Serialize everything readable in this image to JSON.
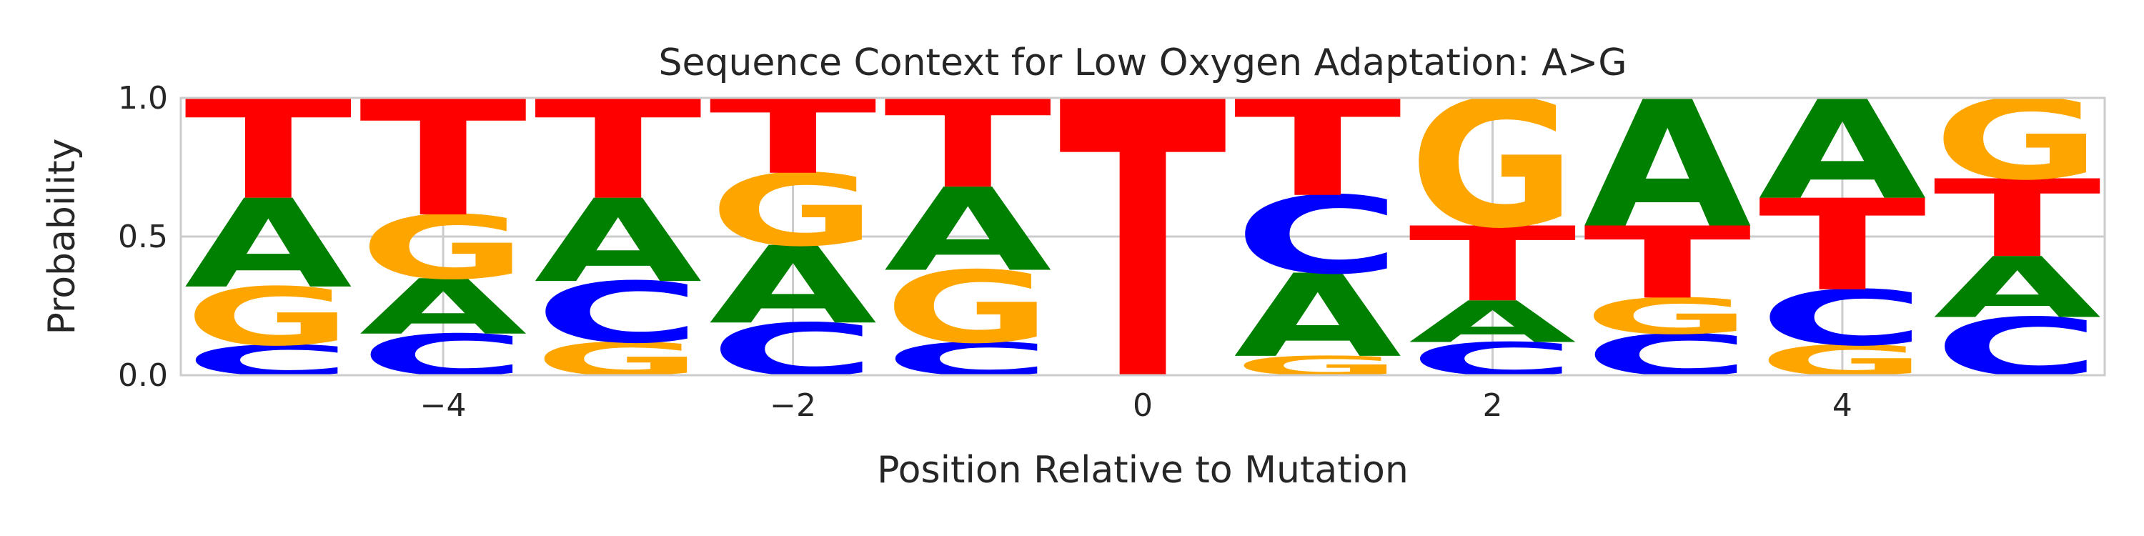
{
  "chart_data": {
    "type": "sequence-logo",
    "title": "Sequence Context for Low Oxygen Adaptation: A>G",
    "xlabel": "Position Relative to Mutation",
    "ylabel": "Probability",
    "xlim": [
      -5.5,
      5.5
    ],
    "ylim": [
      0,
      1
    ],
    "xticks": [
      -4,
      -2,
      0,
      2,
      4
    ],
    "xtick_labels": [
      "−4",
      "−2",
      "0",
      "2",
      "4"
    ],
    "yticks": [
      0,
      0.5,
      1
    ],
    "ytick_labels": [
      "0.0",
      "0.5",
      "1.0"
    ],
    "grid": true,
    "colors": {
      "A": "#008000",
      "C": "#0000ff",
      "G": "#ffa500",
      "T": "#ff0000"
    },
    "positions": [
      {
        "pos": -5,
        "stack": [
          {
            "base": "C",
            "p": 0.11
          },
          {
            "base": "G",
            "p": 0.21
          },
          {
            "base": "A",
            "p": 0.32
          },
          {
            "base": "T",
            "p": 0.36
          }
        ]
      },
      {
        "pos": -4,
        "stack": [
          {
            "base": "C",
            "p": 0.15
          },
          {
            "base": "A",
            "p": 0.2
          },
          {
            "base": "G",
            "p": 0.23
          },
          {
            "base": "T",
            "p": 0.42
          }
        ]
      },
      {
        "pos": -3,
        "stack": [
          {
            "base": "G",
            "p": 0.12
          },
          {
            "base": "C",
            "p": 0.22
          },
          {
            "base": "A",
            "p": 0.3
          },
          {
            "base": "T",
            "p": 0.36
          }
        ]
      },
      {
        "pos": -2,
        "stack": [
          {
            "base": "C",
            "p": 0.19
          },
          {
            "base": "A",
            "p": 0.28
          },
          {
            "base": "G",
            "p": 0.26
          },
          {
            "base": "T",
            "p": 0.27
          }
        ]
      },
      {
        "pos": -1,
        "stack": [
          {
            "base": "C",
            "p": 0.12
          },
          {
            "base": "G",
            "p": 0.26
          },
          {
            "base": "A",
            "p": 0.3
          },
          {
            "base": "T",
            "p": 0.32
          }
        ]
      },
      {
        "pos": 0,
        "stack": [
          {
            "base": "T",
            "p": 1.0
          }
        ]
      },
      {
        "pos": 1,
        "stack": [
          {
            "base": "G",
            "p": 0.07
          },
          {
            "base": "A",
            "p": 0.3
          },
          {
            "base": "C",
            "p": 0.28
          },
          {
            "base": "T",
            "p": 0.35
          }
        ]
      },
      {
        "pos": 2,
        "stack": [
          {
            "base": "C",
            "p": 0.12
          },
          {
            "base": "A",
            "p": 0.15
          },
          {
            "base": "T",
            "p": 0.27
          },
          {
            "base": "G",
            "p": 0.46
          }
        ]
      },
      {
        "pos": 3,
        "stack": [
          {
            "base": "C",
            "p": 0.15
          },
          {
            "base": "G",
            "p": 0.13
          },
          {
            "base": "T",
            "p": 0.26
          },
          {
            "base": "A",
            "p": 0.46
          }
        ]
      },
      {
        "pos": 4,
        "stack": [
          {
            "base": "G",
            "p": 0.11
          },
          {
            "base": "C",
            "p": 0.2
          },
          {
            "base": "T",
            "p": 0.33
          },
          {
            "base": "A",
            "p": 0.36
          }
        ]
      },
      {
        "pos": 5,
        "stack": [
          {
            "base": "C",
            "p": 0.21
          },
          {
            "base": "A",
            "p": 0.22
          },
          {
            "base": "T",
            "p": 0.28
          },
          {
            "base": "G",
            "p": 0.29
          }
        ]
      }
    ]
  }
}
